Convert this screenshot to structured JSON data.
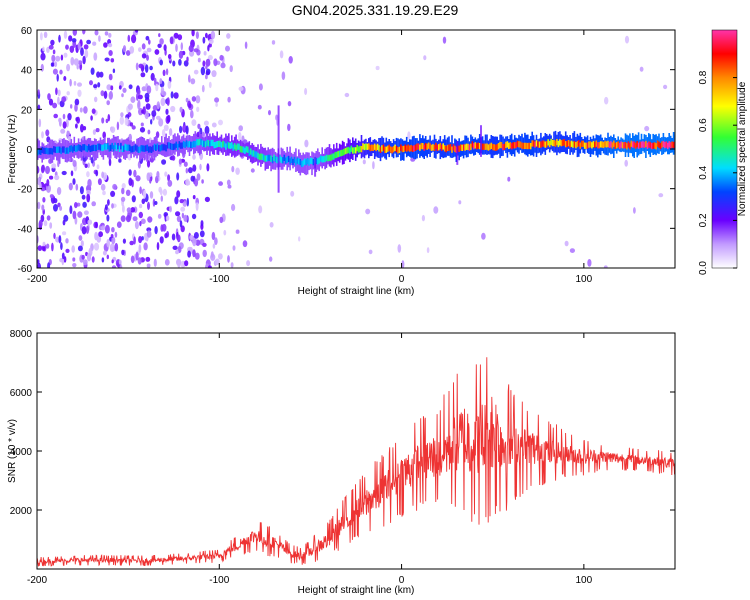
{
  "page_title": "GN04.2025.331.19.29.E29",
  "chart_data": [
    {
      "type": "heatmap",
      "title": "GN04.2025.331.19.29.E29",
      "xlabel": "Height of straight line (km)",
      "ylabel": "Frequency (Hz)",
      "xlim": [
        -200,
        150
      ],
      "ylim": [
        -60,
        60
      ],
      "x_ticks": [
        -200,
        -100,
        0,
        100
      ],
      "x_tick_labels": [
        "-200",
        "-100",
        "0",
        "100"
      ],
      "y_ticks": [
        -60,
        -40,
        -20,
        0,
        20,
        40,
        60
      ],
      "y_tick_labels": [
        "-60",
        "-40",
        "-20",
        "0",
        "20",
        "40",
        "60"
      ],
      "colorbar": {
        "label": "Normalized spectral amplitude",
        "range": [
          0,
          1
        ],
        "ticks": [
          0.0,
          0.2,
          0.4,
          0.6,
          0.8
        ],
        "tick_labels": [
          "0.0",
          "0.2",
          "0.4",
          "0.6",
          "0.8"
        ]
      },
      "ridge_frequency": {
        "x": [
          -195,
          -180,
          -160,
          -140,
          -120,
          -110,
          -100,
          -90,
          -80,
          -72,
          -65,
          -55,
          -48,
          -40,
          -30,
          -20,
          -10,
          0,
          10,
          20,
          30,
          40,
          50,
          60,
          70,
          80,
          90,
          100,
          110,
          120,
          130,
          140,
          150
        ],
        "y": [
          -1,
          0,
          1,
          0,
          2,
          3,
          2,
          1,
          -3,
          -5,
          -5,
          -7,
          -6,
          -4,
          -1,
          1,
          0,
          0,
          1,
          1,
          0,
          2,
          1,
          2,
          2,
          3,
          3,
          2,
          2,
          2,
          2,
          2,
          2
        ],
        "amplitude": [
          0.35,
          0.35,
          0.4,
          0.35,
          0.35,
          0.45,
          0.5,
          0.5,
          0.5,
          0.45,
          0.4,
          0.4,
          0.4,
          0.5,
          0.6,
          0.75,
          0.85,
          0.9,
          0.9,
          0.85,
          0.9,
          0.9,
          0.85,
          0.9,
          0.9,
          0.85,
          0.85,
          0.9,
          0.95,
          1.0,
          1.0,
          1.0,
          1.0
        ]
      }
    },
    {
      "type": "line",
      "xlabel": "Height of straight line (km)",
      "ylabel": "SNR (10 * v/v)",
      "xlim": [
        -200,
        150
      ],
      "ylim": [
        0,
        8000
      ],
      "x_ticks": [
        -200,
        -100,
        0,
        100
      ],
      "x_tick_labels": [
        "-200",
        "-100",
        "0",
        "100"
      ],
      "y_ticks": [
        2000,
        4000,
        6000,
        8000
      ],
      "y_tick_labels": [
        "2000",
        "4000",
        "6000",
        "8000"
      ],
      "series": [
        {
          "name": "SNR",
          "color": "#ee3333",
          "x": [
            -200,
            -180,
            -160,
            -140,
            -120,
            -100,
            -90,
            -80,
            -75,
            -70,
            -65,
            -60,
            -55,
            -50,
            -40,
            -30,
            -20,
            -10,
            0,
            10,
            20,
            25,
            30,
            35,
            40,
            45,
            50,
            55,
            60,
            70,
            80,
            90,
            100,
            110,
            120,
            130,
            140,
            150
          ],
          "y": [
            250,
            300,
            300,
            280,
            350,
            450,
            800,
            1150,
            1000,
            900,
            700,
            500,
            450,
            600,
            1000,
            1700,
            2200,
            2700,
            3200,
            3600,
            3800,
            4100,
            4300,
            4400,
            4300,
            4400,
            4700,
            4300,
            4200,
            4100,
            4000,
            3900,
            3800,
            3800,
            3750,
            3700,
            3650,
            3550
          ],
          "noise_amplitude": [
            100,
            110,
            110,
            110,
            120,
            150,
            250,
            350,
            350,
            300,
            250,
            200,
            200,
            250,
            400,
            550,
            700,
            800,
            900,
            1000,
            1100,
            1300,
            1500,
            1700,
            1800,
            1900,
            2000,
            1600,
            1300,
            900,
            700,
            500,
            400,
            300,
            250,
            250,
            250,
            250
          ]
        }
      ]
    }
  ]
}
